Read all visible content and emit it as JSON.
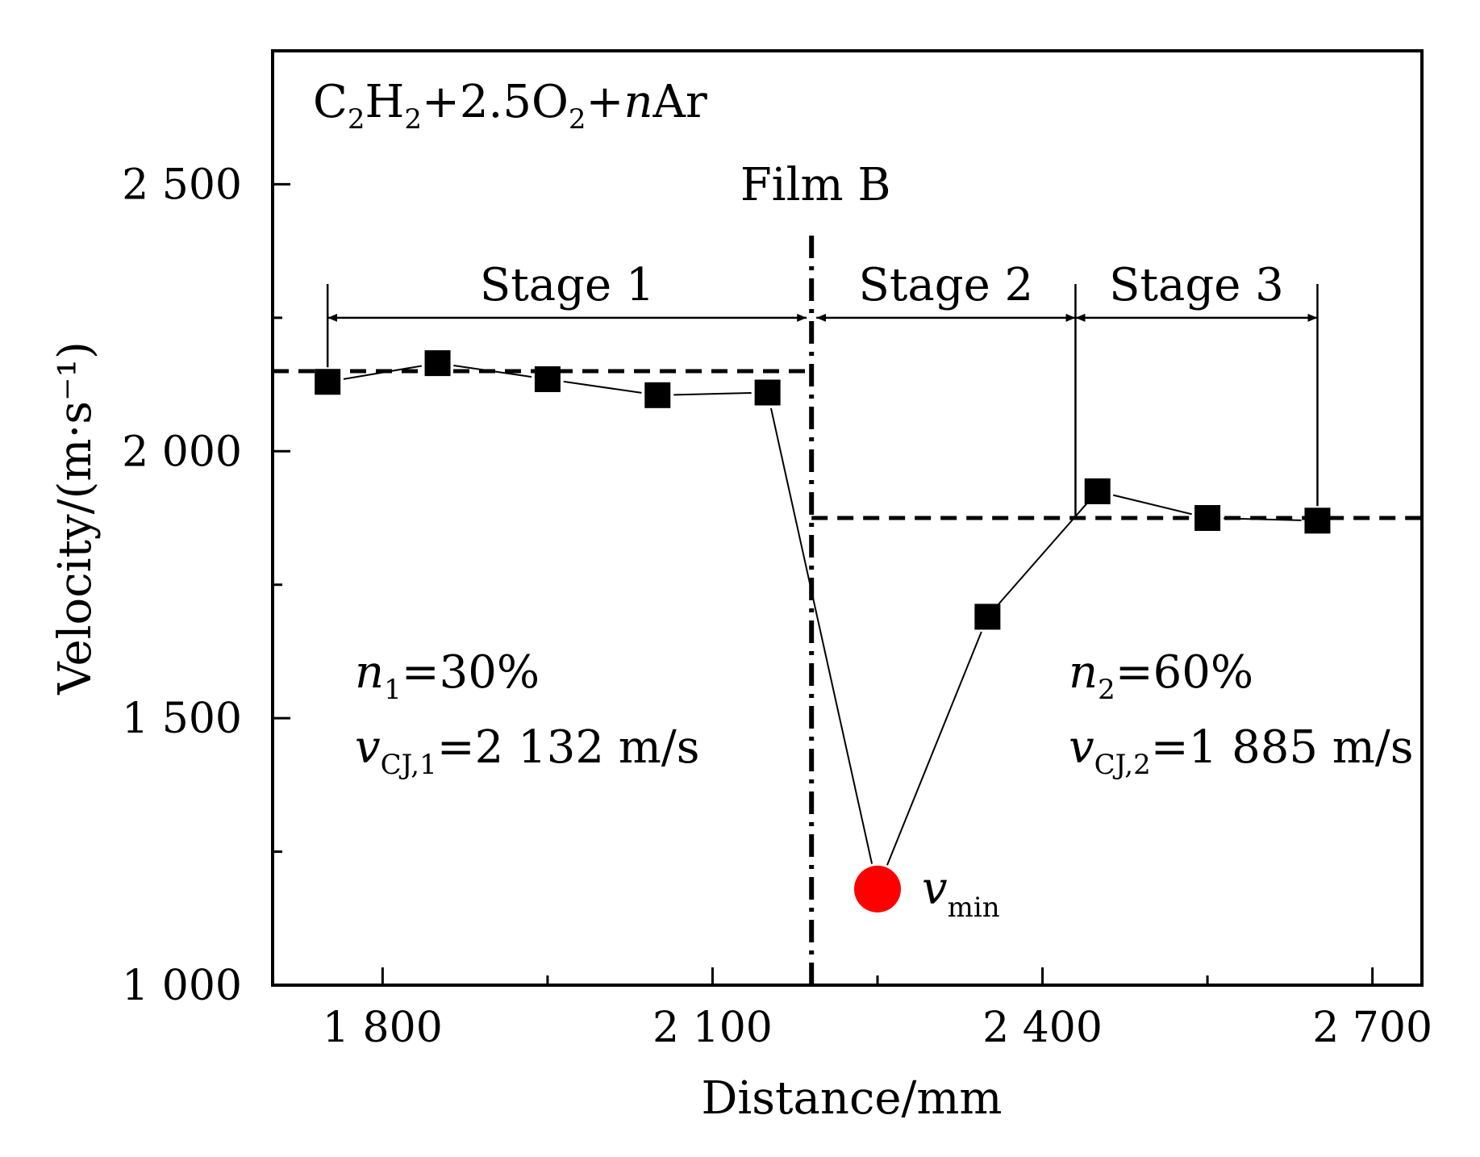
{
  "chart_data": {
    "type": "line",
    "title": "",
    "xlabel": "Distance/mm",
    "ylabel": "Velocity/(m·s⁻¹)",
    "xlim": [
      1700,
      2745
    ],
    "ylim": [
      1000,
      2750
    ],
    "x_ticks": [
      1800,
      2100,
      2400,
      2700
    ],
    "x_tick_labels": [
      "1 800",
      "2 100",
      "2 400",
      "2 700"
    ],
    "x_minor_ticks": [
      1950,
      2250,
      2550
    ],
    "y_ticks": [
      1000,
      1500,
      2000,
      2500
    ],
    "y_tick_labels": [
      "1 000",
      "1 500",
      "2 000",
      "2 500"
    ],
    "y_minor_ticks": [
      1250,
      1750,
      2250
    ],
    "grid": false,
    "series": [
      {
        "marker": "square",
        "color": "#000000",
        "x": [
          1750,
          1850,
          1950,
          2050,
          2150,
          2250,
          2350,
          2450,
          2550,
          2650
        ],
        "y": [
          2130,
          2165,
          2135,
          2105,
          2110,
          1180,
          1690,
          1925,
          1875,
          1870
        ]
      }
    ],
    "min_point": {
      "x": 2250,
      "y": 1180,
      "color": "#ff0000",
      "label_main": "v",
      "label_sub": "min"
    },
    "reference_lines": [
      {
        "y": 2150,
        "x_range": [
          1700,
          2190
        ],
        "style": "dashed",
        "value_text_main": "v",
        "value_text_sub": "CJ,1",
        "value_text_rest": "=2 132 m/s"
      },
      {
        "y": 1875,
        "x_range": [
          2190,
          2745
        ],
        "style": "dashed",
        "value_text_main": "v",
        "value_text_sub": "CJ,2",
        "value_text_rest": "=1 885 m/s"
      }
    ],
    "film_line": {
      "x": 2190,
      "label": "Film B"
    },
    "stages": [
      {
        "label": "Stage 1",
        "x_start": 1750,
        "x_end": 2190
      },
      {
        "label": "Stage 2",
        "x_start": 2190,
        "x_end": 2430
      },
      {
        "label": "Stage 3",
        "x_start": 2430,
        "x_end": 2650
      }
    ],
    "stage_arrow_y": 2250,
    "mixture": {
      "parts": [
        "C",
        "2",
        "H",
        "2",
        "+2.5O",
        "2",
        "+",
        "n",
        "Ar"
      ]
    },
    "concentrations": [
      {
        "main": "n",
        "sub": "1",
        "rest": "=30%"
      },
      {
        "main": "n",
        "sub": "2",
        "rest": "=60%"
      }
    ]
  }
}
